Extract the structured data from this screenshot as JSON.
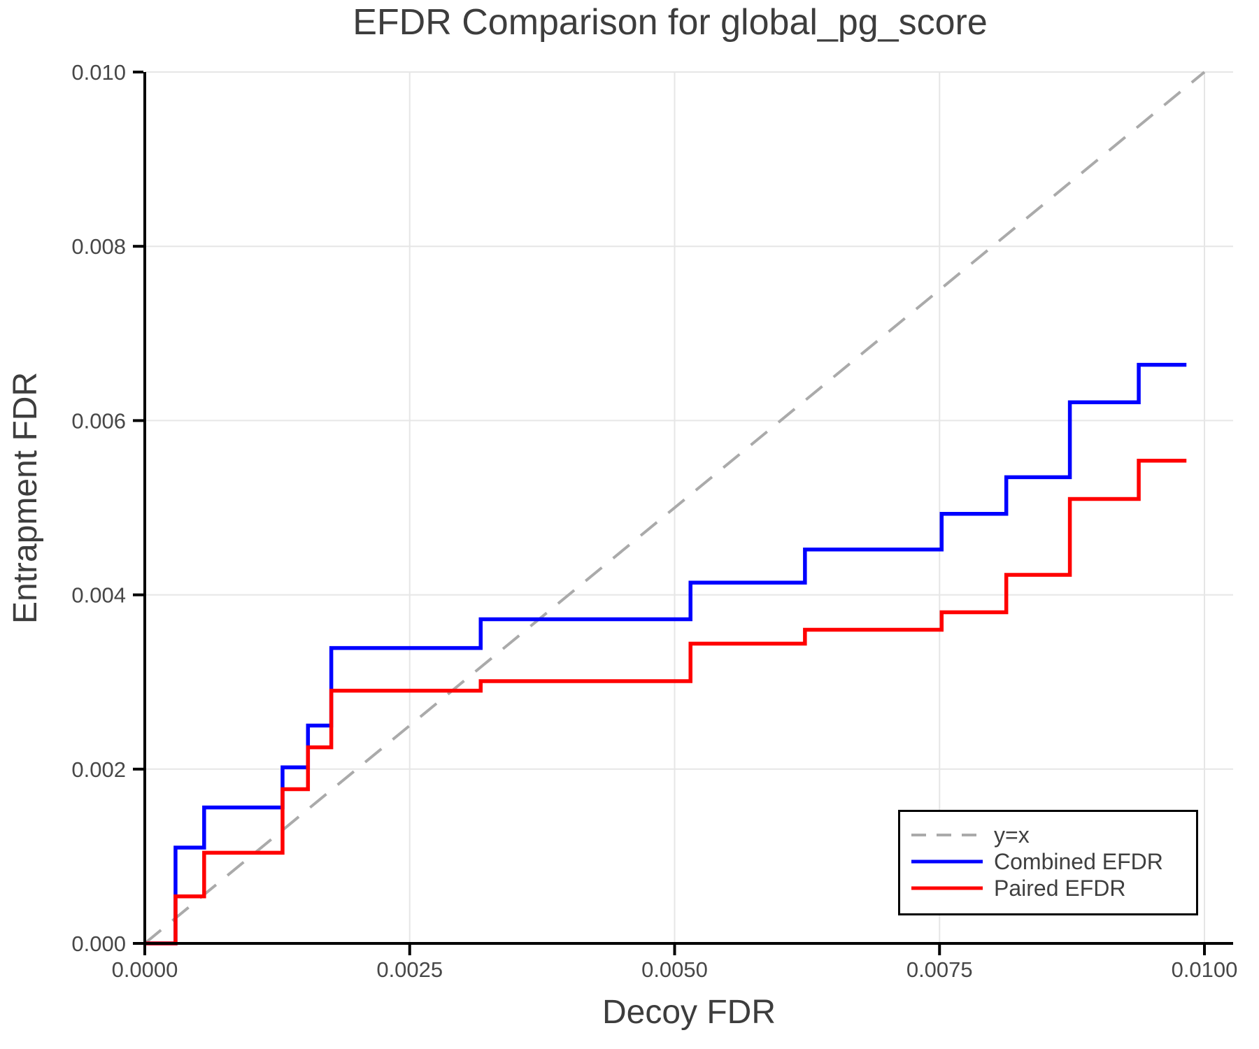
{
  "chart": {
    "title": "EFDR Comparison for global_pg_score",
    "xlabel": "Decoy FDR",
    "ylabel": "Entrapment FDR"
  },
  "legend": {
    "position": "lower right",
    "items": [
      {
        "label": "y=x",
        "color": "#aaaaaa",
        "dashed": true
      },
      {
        "label": "Combined EFDR",
        "color": "#0000ff",
        "dashed": false
      },
      {
        "label": "Paired EFDR",
        "color": "#ff0000",
        "dashed": false
      }
    ]
  },
  "chart_data": {
    "type": "line",
    "step_mode": "post",
    "title": "EFDR Comparison for global_pg_score",
    "xlabel": "Decoy FDR",
    "ylabel": "Entrapment FDR",
    "xlim": [
      0,
      0.01027
    ],
    "ylim": [
      0,
      0.01
    ],
    "grid": true,
    "legend_position": "lower right",
    "x_ticks": {
      "values": [
        0,
        0.0025,
        0.005,
        0.0075,
        0.01
      ],
      "labels": [
        "0.0000",
        "0.0025",
        "0.0050",
        "0.0075",
        "0.0100"
      ]
    },
    "y_ticks": {
      "values": [
        0,
        0.002,
        0.004,
        0.006,
        0.008,
        0.01
      ],
      "labels": [
        "0.000",
        "0.002",
        "0.004",
        "0.006",
        "0.008",
        "0.010"
      ]
    },
    "series": [
      {
        "name": "y=x",
        "color": "#aaaaaa",
        "style": "dashed",
        "x": [
          0,
          0.01
        ],
        "y": [
          0,
          0.01
        ]
      },
      {
        "name": "Combined EFDR",
        "color": "#0000ff",
        "style": "step",
        "x_start": 0,
        "y_start": 0,
        "x_end": 0.00983,
        "step_x": [
          0.00029,
          0.00056,
          0.0013,
          0.00154,
          0.00176,
          0.00317,
          0.00515,
          0.00623,
          0.00752,
          0.00813,
          0.00873,
          0.00938
        ],
        "step_y": [
          0.0011,
          0.00156,
          0.00202,
          0.0025,
          0.00339,
          0.00372,
          0.00414,
          0.00452,
          0.00493,
          0.00535,
          0.00621,
          0.00664
        ]
      },
      {
        "name": "Paired EFDR",
        "color": "#ff0000",
        "style": "step",
        "x_start": 0,
        "y_start": 0,
        "x_end": 0.00983,
        "step_x": [
          0.00029,
          0.00056,
          0.0013,
          0.00154,
          0.00176,
          0.00317,
          0.00515,
          0.00623,
          0.00752,
          0.00813,
          0.00873,
          0.00938
        ],
        "step_y": [
          0.00054,
          0.00104,
          0.00177,
          0.00225,
          0.0029,
          0.00301,
          0.00344,
          0.0036,
          0.0038,
          0.00423,
          0.0051,
          0.00554
        ]
      }
    ]
  }
}
